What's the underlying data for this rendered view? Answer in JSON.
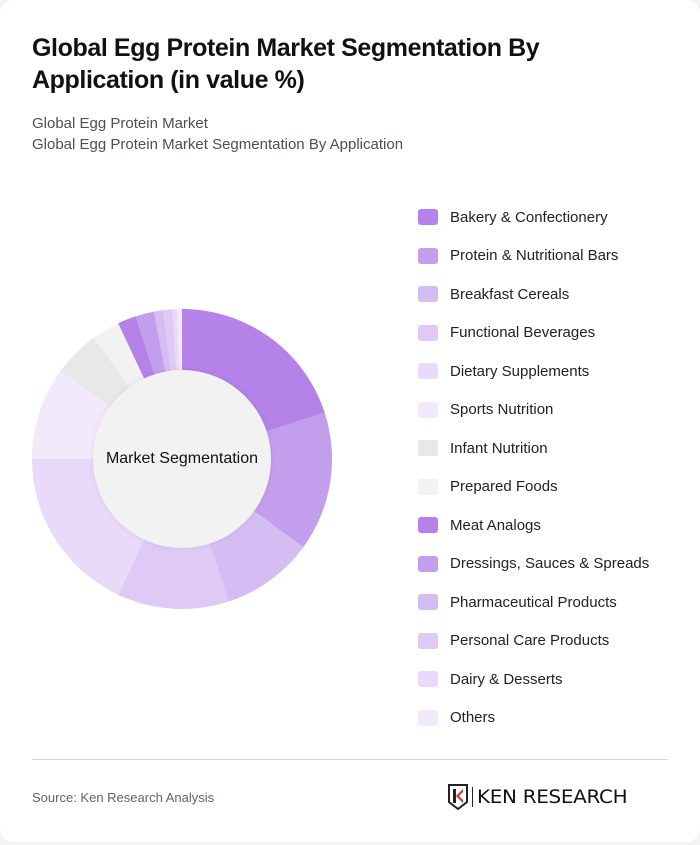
{
  "header": {
    "title": "Global Egg Protein Market Segmentation By Application (in value %)",
    "subtitle_line1": "Global Egg Protein Market",
    "subtitle_line2": "Global Egg Protein Market Segmentation By Application"
  },
  "chart": {
    "center_label": "Market Segmentation"
  },
  "legend": [
    {
      "label": "Bakery & Confectionery",
      "color": "#b482e9"
    },
    {
      "label": "Protein & Nutritional Bars",
      "color": "#c39eec"
    },
    {
      "label": "Breakfast Cereals",
      "color": "#d5bdf3"
    },
    {
      "label": "Functional Beverages",
      "color": "#dfcaf5"
    },
    {
      "label": "Dietary Supplements",
      "color": "#e8daf8"
    },
    {
      "label": "Sports Nutrition",
      "color": "#f2eafb"
    },
    {
      "label": "Infant Nutrition",
      "color": "#e8e8e8"
    },
    {
      "label": "Prepared Foods",
      "color": "#f2f2f2"
    },
    {
      "label": "Meat Analogs",
      "color": "#b482e9"
    },
    {
      "label": "Dressings, Sauces & Spreads",
      "color": "#c39eec"
    },
    {
      "label": "Pharmaceutical Products",
      "color": "#d5bdf3"
    },
    {
      "label": "Personal Care Products",
      "color": "#dfcaf5"
    },
    {
      "label": "Dairy & Desserts",
      "color": "#e8daf8"
    },
    {
      "label": "Others",
      "color": "#f2eafb"
    }
  ],
  "footer": {
    "source": "Source: Ken Research Analysis",
    "logo_text": "KEN RESEARCH"
  },
  "chart_data": {
    "type": "pie",
    "variant": "donut",
    "title": "Global Egg Protein Market Segmentation By Application (in value %)",
    "center_label": "Market Segmentation",
    "categories": [
      "Bakery & Confectionery",
      "Protein & Nutritional Bars",
      "Breakfast Cereals",
      "Functional Beverages",
      "Dietary Supplements",
      "Sports Nutrition",
      "Infant Nutrition",
      "Prepared Foods",
      "Meat Analogs",
      "Dressings, Sauces & Spreads",
      "Pharmaceutical Products",
      "Personal Care Products",
      "Dairy & Desserts",
      "Others"
    ],
    "values": [
      20,
      15,
      10,
      12,
      18,
      10,
      5,
      3,
      2,
      2,
      1,
      1,
      0.5,
      0.5
    ],
    "colors": [
      "#b482e9",
      "#c39eec",
      "#d5bdf3",
      "#dfcaf5",
      "#e8daf8",
      "#f2eafb",
      "#e8e8e8",
      "#f2f2f2",
      "#b482e9",
      "#c39eec",
      "#d5bdf3",
      "#dfcaf5",
      "#e8daf8",
      "#f2eafb"
    ],
    "legend_position": "right",
    "start_angle_deg": 0,
    "direction": "clockwise"
  }
}
